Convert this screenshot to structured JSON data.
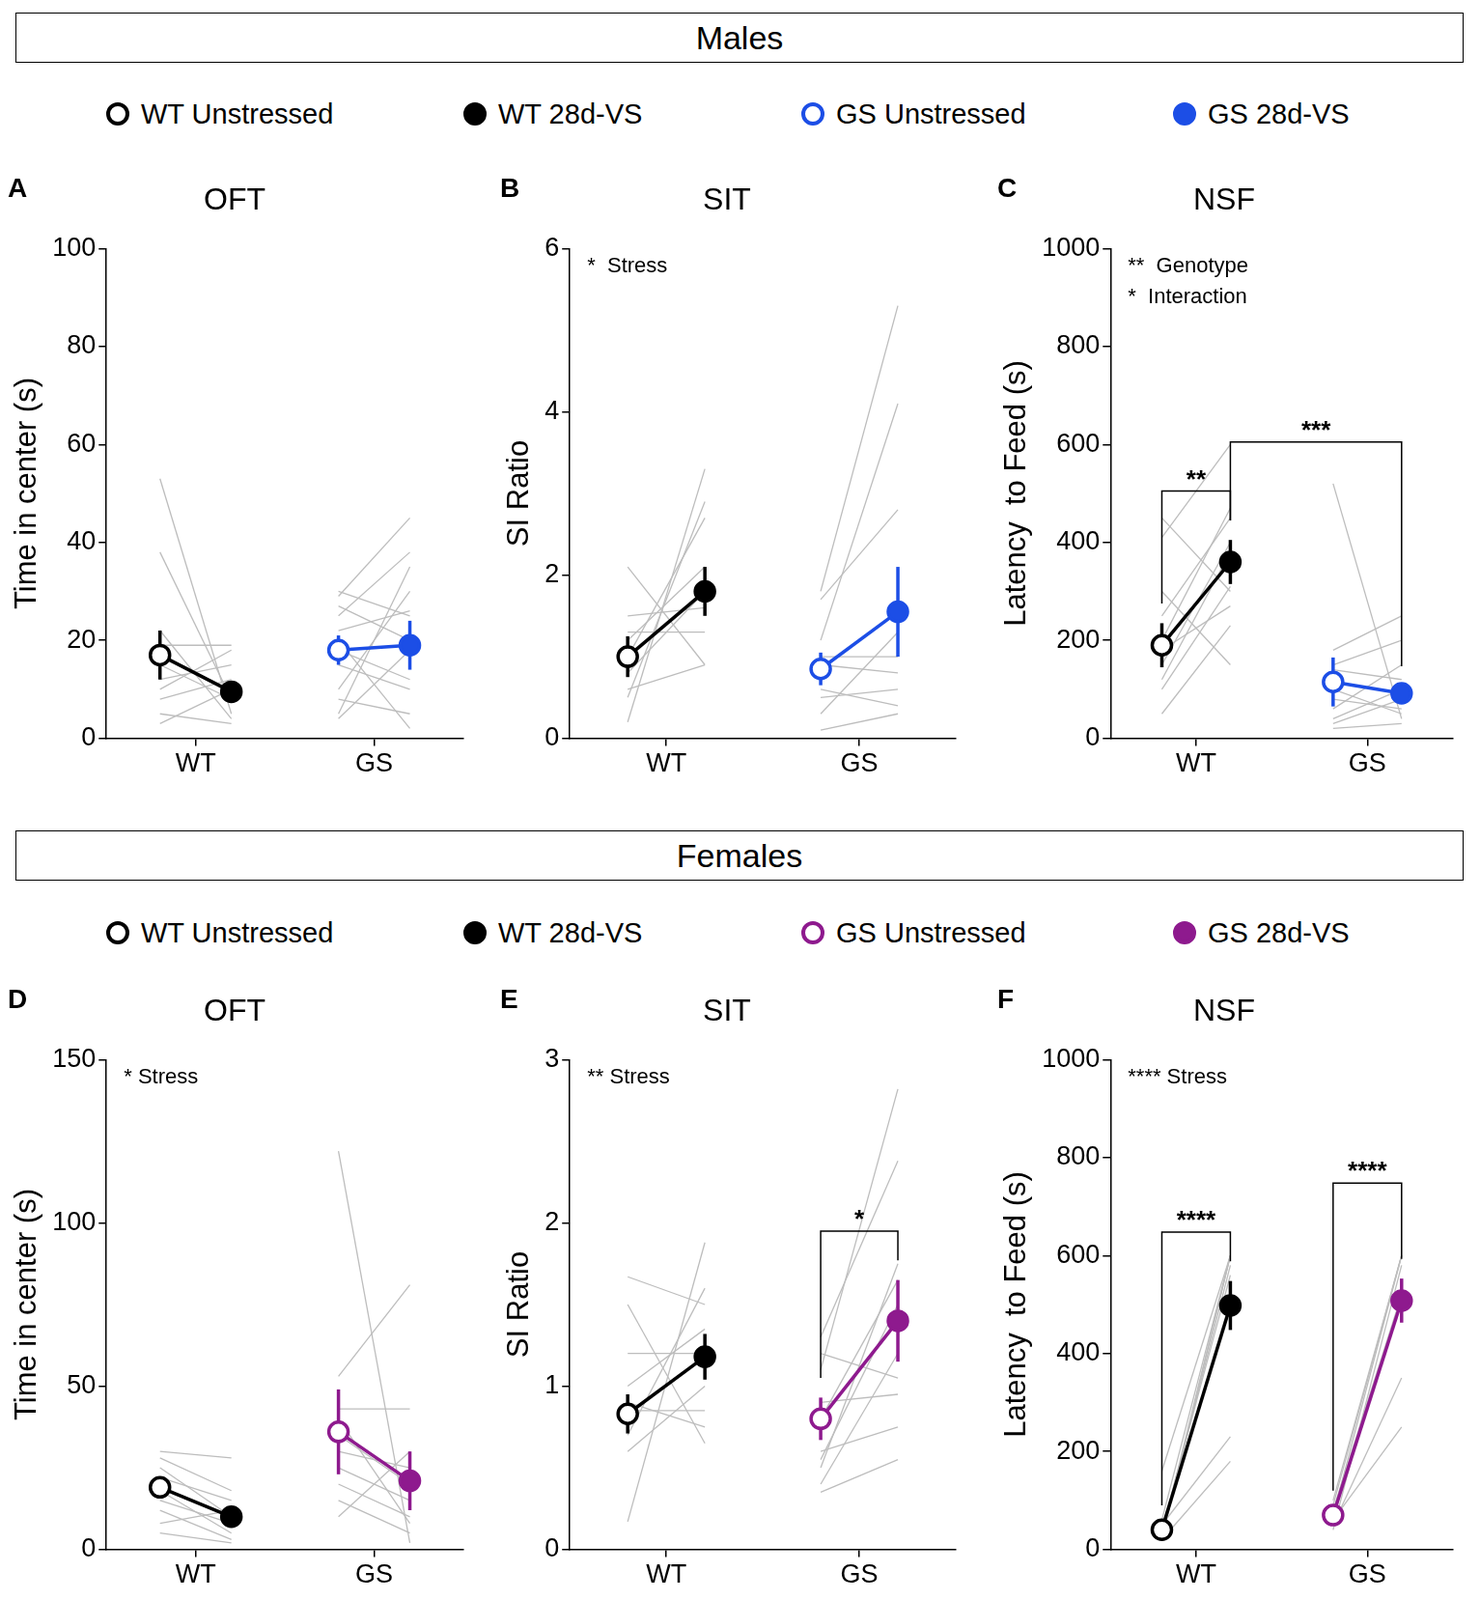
{
  "chart_data": [
    {
      "type": "line",
      "section": "Males",
      "panel": "A",
      "title": "OFT",
      "y_label": "Time in center (s)",
      "categories": [
        "WT",
        "GS"
      ],
      "ylim": [
        0,
        100
      ],
      "yticks": [
        0,
        20,
        40,
        60,
        80,
        100
      ],
      "grid": false,
      "annotations": [],
      "series": [
        {
          "name": "WT Unstressed",
          "color": "#000000",
          "marker": "open_circle",
          "values": [
            17,
            null
          ],
          "errors": [
            5,
            null
          ]
        },
        {
          "name": "WT 28d-VS",
          "color": "#000000",
          "marker": "circle",
          "values": [
            9.5,
            null
          ],
          "errors": [
            2,
            null
          ]
        },
        {
          "name": "GS Unstressed",
          "color": "#1c4ee6",
          "marker": "open_circle",
          "values": [
            null,
            18
          ],
          "errors": [
            null,
            3
          ]
        },
        {
          "name": "GS 28d-VS",
          "color": "#1c4ee6",
          "marker": "circle",
          "values": [
            null,
            19
          ],
          "errors": [
            null,
            5
          ]
        }
      ],
      "individuals": [
        [
          [
            53,
            5
          ],
          [
            38,
            8
          ],
          [
            19,
            19
          ],
          [
            12,
            15
          ],
          [
            10,
            18
          ],
          [
            8,
            12
          ],
          [
            5,
            3
          ],
          [
            3,
            10
          ],
          [
            22,
            4
          ],
          [
            15,
            8
          ]
        ],
        [
          [
            29,
            45
          ],
          [
            25,
            38
          ],
          [
            27,
            20
          ],
          [
            22,
            26
          ],
          [
            18,
            12
          ],
          [
            15,
            10
          ],
          [
            10,
            30
          ],
          [
            8,
            5
          ],
          [
            5,
            35
          ],
          [
            4,
            18
          ],
          [
            20,
            2
          ],
          [
            30,
            25
          ]
        ]
      ],
      "comparisons": []
    },
    {
      "type": "line",
      "section": "Males",
      "panel": "B",
      "title": "SIT",
      "y_label": "SI Ratio",
      "categories": [
        "WT",
        "GS"
      ],
      "ylim": [
        0,
        6
      ],
      "yticks": [
        0,
        2,
        4,
        6
      ],
      "grid": false,
      "annotations": [
        "*  Stress"
      ],
      "series": [
        {
          "name": "WT Unstressed",
          "color": "#000000",
          "marker": "open_circle",
          "values": [
            1.0,
            null
          ],
          "errors": [
            0.25,
            null
          ]
        },
        {
          "name": "WT 28d-VS",
          "color": "#000000",
          "marker": "circle",
          "values": [
            1.8,
            null
          ],
          "errors": [
            0.3,
            null
          ]
        },
        {
          "name": "GS Unstressed",
          "color": "#1c4ee6",
          "marker": "open_circle",
          "values": [
            null,
            0.85
          ],
          "errors": [
            null,
            0.2
          ]
        },
        {
          "name": "GS 28d-VS",
          "color": "#1c4ee6",
          "marker": "circle",
          "values": [
            null,
            1.55
          ],
          "errors": [
            null,
            0.55
          ]
        }
      ],
      "individuals": [
        [
          [
            0.2,
            3.3
          ],
          [
            0.5,
            2.9
          ],
          [
            1.0,
            2.7
          ],
          [
            1.5,
            1.6
          ],
          [
            2.1,
            0.9
          ],
          [
            1.3,
            1.3
          ],
          [
            0.8,
            1.8
          ],
          [
            1.2,
            2.1
          ],
          [
            0.6,
            0.9
          ]
        ],
        [
          [
            1.8,
            5.3
          ],
          [
            1.2,
            4.1
          ],
          [
            0.3,
            1.3
          ],
          [
            0.5,
            0.6
          ],
          [
            0.1,
            0.3
          ],
          [
            0.9,
            0.8
          ],
          [
            0.6,
            0.4
          ],
          [
            1.7,
            2.8
          ],
          [
            1.0,
            1.0
          ]
        ]
      ],
      "comparisons": []
    },
    {
      "type": "line",
      "section": "Males",
      "panel": "C",
      "title": "NSF",
      "y_label": "Latency  to Feed (s)",
      "categories": [
        "WT",
        "GS"
      ],
      "ylim": [
        0,
        1000
      ],
      "yticks": [
        0,
        200,
        400,
        600,
        800,
        1000
      ],
      "grid": false,
      "annotations": [
        "**  Genotype",
        "*  Interaction"
      ],
      "series": [
        {
          "name": "WT Unstressed",
          "color": "#000000",
          "marker": "open_circle",
          "values": [
            190,
            null
          ],
          "errors": [
            45,
            null
          ]
        },
        {
          "name": "WT 28d-VS",
          "color": "#000000",
          "marker": "circle",
          "values": [
            360,
            null
          ],
          "errors": [
            45,
            null
          ]
        },
        {
          "name": "GS Unstressed",
          "color": "#1c4ee6",
          "marker": "open_circle",
          "values": [
            null,
            115
          ],
          "errors": [
            null,
            50
          ]
        },
        {
          "name": "GS 28d-VS",
          "color": "#1c4ee6",
          "marker": "circle",
          "values": [
            null,
            92
          ],
          "errors": [
            null,
            15
          ]
        }
      ],
      "individuals": [
        [
          [
            450,
            300
          ],
          [
            410,
            600
          ],
          [
            200,
            470
          ],
          [
            150,
            400
          ],
          [
            120,
            380
          ],
          [
            100,
            310
          ],
          [
            50,
            230
          ],
          [
            300,
            150
          ],
          [
            180,
            270
          ],
          [
            250,
            450
          ]
        ],
        [
          [
            520,
            40
          ],
          [
            180,
            250
          ],
          [
            150,
            200
          ],
          [
            80,
            60
          ],
          [
            40,
            100
          ],
          [
            20,
            30
          ],
          [
            60,
            150
          ],
          [
            100,
            50
          ],
          [
            30,
            80
          ],
          [
            140,
            120
          ]
        ]
      ],
      "comparisons": [
        {
          "from": "WT Unstressed",
          "to": "WT 28d-VS",
          "label": "**"
        },
        {
          "from": "WT 28d-VS",
          "to": "GS 28d-VS",
          "label": "***"
        }
      ]
    },
    {
      "type": "line",
      "section": "Females",
      "panel": "D",
      "title": "OFT",
      "y_label": "Time in center (s)",
      "categories": [
        "WT",
        "GS"
      ],
      "ylim": [
        0,
        150
      ],
      "yticks": [
        0,
        50,
        100,
        150
      ],
      "grid": false,
      "annotations": [
        "* Stress"
      ],
      "series": [
        {
          "name": "WT Unstressed",
          "color": "#000000",
          "marker": "open_circle",
          "values": [
            19,
            null
          ],
          "errors": [
            3,
            null
          ]
        },
        {
          "name": "WT 28d-VS",
          "color": "#000000",
          "marker": "circle",
          "values": [
            10,
            null
          ],
          "errors": [
            2,
            null
          ]
        },
        {
          "name": "GS Unstressed",
          "color": "#8e1a8e",
          "marker": "open_circle",
          "values": [
            null,
            36
          ],
          "errors": [
            null,
            13
          ]
        },
        {
          "name": "GS 28d-VS",
          "color": "#8e1a8e",
          "marker": "circle",
          "values": [
            null,
            21
          ],
          "errors": [
            null,
            9
          ]
        }
      ],
      "individuals": [
        [
          [
            30,
            28
          ],
          [
            25,
            10
          ],
          [
            22,
            15
          ],
          [
            18,
            5
          ],
          [
            15,
            8
          ],
          [
            12,
            3
          ],
          [
            8,
            12
          ],
          [
            5,
            2
          ],
          [
            28,
            18
          ]
        ],
        [
          [
            122,
            2
          ],
          [
            53,
            81
          ],
          [
            43,
            43
          ],
          [
            30,
            25
          ],
          [
            25,
            15
          ],
          [
            20,
            10
          ],
          [
            15,
            5
          ],
          [
            10,
            30
          ],
          [
            35,
            20
          ],
          [
            40,
            8
          ]
        ]
      ],
      "comparisons": []
    },
    {
      "type": "line",
      "section": "Females",
      "panel": "E",
      "title": "SIT",
      "y_label": "SI Ratio",
      "categories": [
        "WT",
        "GS"
      ],
      "ylim": [
        0,
        3
      ],
      "yticks": [
        0,
        1,
        2,
        3
      ],
      "grid": false,
      "annotations": [
        "** Stress"
      ],
      "series": [
        {
          "name": "WT Unstressed",
          "color": "#000000",
          "marker": "open_circle",
          "values": [
            0.83,
            null
          ],
          "errors": [
            0.12,
            null
          ]
        },
        {
          "name": "WT 28d-VS",
          "color": "#000000",
          "marker": "circle",
          "values": [
            1.18,
            null
          ],
          "errors": [
            0.14,
            null
          ]
        },
        {
          "name": "GS Unstressed",
          "color": "#8e1a8e",
          "marker": "open_circle",
          "values": [
            null,
            0.8
          ],
          "errors": [
            null,
            0.13
          ]
        },
        {
          "name": "GS 28d-VS",
          "color": "#8e1a8e",
          "marker": "circle",
          "values": [
            null,
            1.4
          ],
          "errors": [
            null,
            0.25
          ]
        }
      ],
      "individuals": [
        [
          [
            0.17,
            1.88
          ],
          [
            1.67,
            1.5
          ],
          [
            1.5,
            0.65
          ],
          [
            0.9,
            0.75
          ],
          [
            0.6,
            1.0
          ],
          [
            1.0,
            1.35
          ],
          [
            0.7,
            1.6
          ],
          [
            0.85,
            0.85
          ],
          [
            1.2,
            1.2
          ]
        ],
        [
          [
            1.1,
            2.82
          ],
          [
            1.3,
            2.38
          ],
          [
            0.5,
            1.75
          ],
          [
            0.4,
            1.2
          ],
          [
            0.35,
            0.55
          ],
          [
            0.6,
            0.75
          ],
          [
            1.2,
            1.05
          ],
          [
            0.8,
            1.65
          ],
          [
            0.55,
            1.5
          ],
          [
            0.9,
            0.95
          ]
        ]
      ],
      "comparisons": [
        {
          "from": "GS Unstressed",
          "to": "GS 28d-VS",
          "label": "*"
        }
      ]
    },
    {
      "type": "line",
      "section": "Females",
      "panel": "F",
      "title": "NSF",
      "y_label": "Latency  to Feed (s)",
      "categories": [
        "WT",
        "GS"
      ],
      "ylim": [
        0,
        1000
      ],
      "yticks": [
        0,
        200,
        400,
        600,
        800,
        1000
      ],
      "grid": false,
      "annotations": [
        "**** Stress"
      ],
      "series": [
        {
          "name": "WT Unstressed",
          "color": "#000000",
          "marker": "open_circle",
          "values": [
            40,
            null
          ],
          "errors": [
            10,
            null
          ]
        },
        {
          "name": "WT 28d-VS",
          "color": "#000000",
          "marker": "circle",
          "values": [
            498,
            null
          ],
          "errors": [
            50,
            null
          ]
        },
        {
          "name": "GS Unstressed",
          "color": "#8e1a8e",
          "marker": "open_circle",
          "values": [
            null,
            70
          ],
          "errors": [
            null,
            10
          ]
        },
        {
          "name": "GS 28d-VS",
          "color": "#8e1a8e",
          "marker": "circle",
          "values": [
            null,
            508
          ],
          "errors": [
            null,
            45
          ]
        }
      ],
      "individuals": [
        [
          [
            160,
            600
          ],
          [
            30,
            580
          ],
          [
            20,
            600
          ],
          [
            40,
            560
          ],
          [
            50,
            230
          ],
          [
            20,
            180
          ],
          [
            30,
            600
          ],
          [
            60,
            600
          ]
        ],
        [
          [
            100,
            600
          ],
          [
            50,
            350
          ],
          [
            60,
            250
          ],
          [
            90,
            600
          ],
          [
            40,
            580
          ],
          [
            80,
            520
          ],
          [
            70,
            600
          ]
        ]
      ],
      "comparisons": [
        {
          "from": "WT Unstressed",
          "to": "WT 28d-VS",
          "label": "****"
        },
        {
          "from": "GS Unstressed",
          "to": "GS 28d-VS",
          "label": "****"
        }
      ]
    }
  ]
}
